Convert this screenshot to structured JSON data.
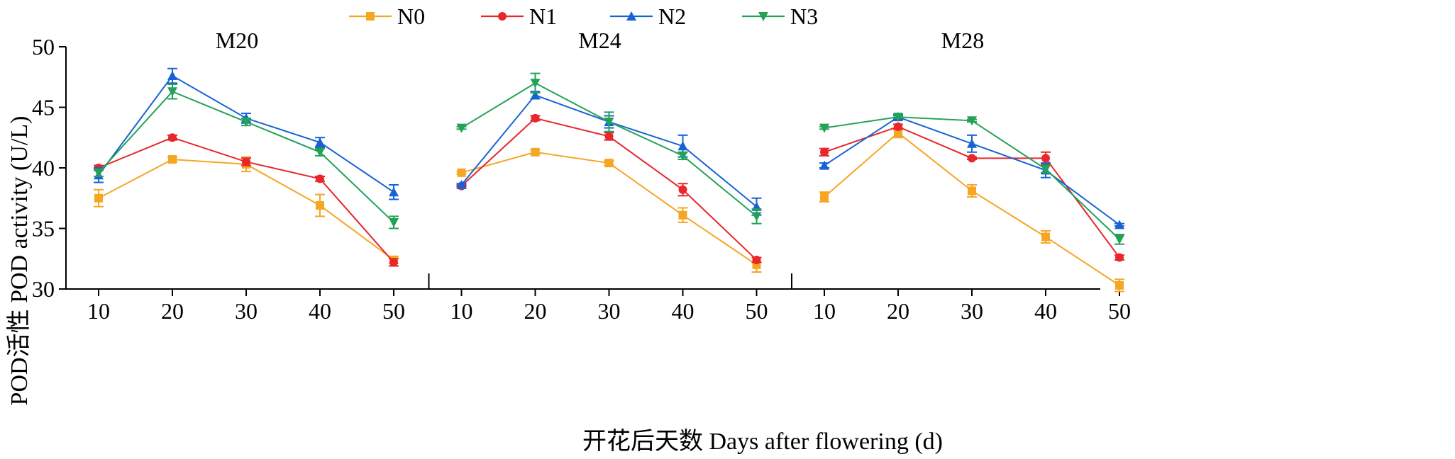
{
  "chart_data": {
    "type": "line",
    "ylabel": "POD活性 POD activity (U/L)",
    "xlabel": "开花后天数 Days after flowering (d)",
    "ylim": [
      30,
      50
    ],
    "yticks": [
      30,
      35,
      40,
      45,
      50
    ],
    "x": [
      10,
      20,
      30,
      40,
      50
    ],
    "legend_position": "top-center",
    "grid": false,
    "legend": [
      {
        "name": "N0",
        "color": "#f5a623",
        "marker": "square"
      },
      {
        "name": "N1",
        "color": "#e8262b",
        "marker": "circle"
      },
      {
        "name": "N2",
        "color": "#1763d4",
        "marker": "triangle-up"
      },
      {
        "name": "N3",
        "color": "#22a257",
        "marker": "triangle-down"
      }
    ],
    "panels": [
      {
        "title": "M20",
        "series": [
          {
            "name": "N0",
            "values": [
              37.5,
              40.7,
              40.3,
              36.9,
              32.4
            ],
            "errors": [
              0.7,
              0.2,
              0.6,
              0.9,
              0.3
            ]
          },
          {
            "name": "N1",
            "values": [
              40.0,
              42.5,
              40.5,
              39.1,
              32.2
            ],
            "errors": [
              0.2,
              0.2,
              0.3,
              0.2,
              0.3
            ]
          },
          {
            "name": "N2",
            "values": [
              39.4,
              47.6,
              44.1,
              42.1,
              38.0
            ],
            "errors": [
              0.6,
              0.6,
              0.4,
              0.4,
              0.6
            ]
          },
          {
            "name": "N3",
            "values": [
              39.6,
              46.3,
              43.8,
              41.3,
              35.5
            ],
            "errors": [
              0.3,
              0.6,
              0.3,
              0.3,
              0.5
            ]
          }
        ]
      },
      {
        "title": "M24",
        "series": [
          {
            "name": "N0",
            "values": [
              39.6,
              41.3,
              40.4,
              36.1,
              32.0
            ],
            "errors": [
              0.1,
              0.2,
              0.2,
              0.6,
              0.6
            ]
          },
          {
            "name": "N1",
            "values": [
              38.5,
              44.1,
              42.6,
              38.2,
              32.4
            ],
            "errors": [
              0.1,
              0.2,
              0.3,
              0.5,
              0.2
            ]
          },
          {
            "name": "N2",
            "values": [
              38.6,
              46.0,
              43.8,
              41.8,
              36.8
            ],
            "errors": [
              0.1,
              0.3,
              0.5,
              0.9,
              0.7
            ]
          },
          {
            "name": "N3",
            "values": [
              43.3,
              47.0,
              43.8,
              41.0,
              36.0
            ],
            "errors": [
              0.1,
              0.8,
              0.8,
              0.3,
              0.6
            ]
          }
        ]
      },
      {
        "title": "M28",
        "series": [
          {
            "name": "N0",
            "values": [
              37.6,
              42.9,
              38.1,
              34.3,
              30.3
            ],
            "errors": [
              0.4,
              0.4,
              0.5,
              0.5,
              0.5
            ]
          },
          {
            "name": "N1",
            "values": [
              41.3,
              43.4,
              40.8,
              40.8,
              32.6
            ],
            "errors": [
              0.3,
              0.2,
              0.1,
              0.5,
              0.2
            ]
          },
          {
            "name": "N2",
            "values": [
              40.2,
              44.2,
              42.0,
              39.8,
              35.3
            ],
            "errors": [
              0.2,
              0.2,
              0.7,
              0.6,
              0.1
            ]
          },
          {
            "name": "N3",
            "values": [
              43.3,
              44.2,
              43.9,
              39.9,
              34.1
            ],
            "errors": [
              0.1,
              0.1,
              0.1,
              0.3,
              0.4
            ]
          }
        ]
      }
    ]
  }
}
